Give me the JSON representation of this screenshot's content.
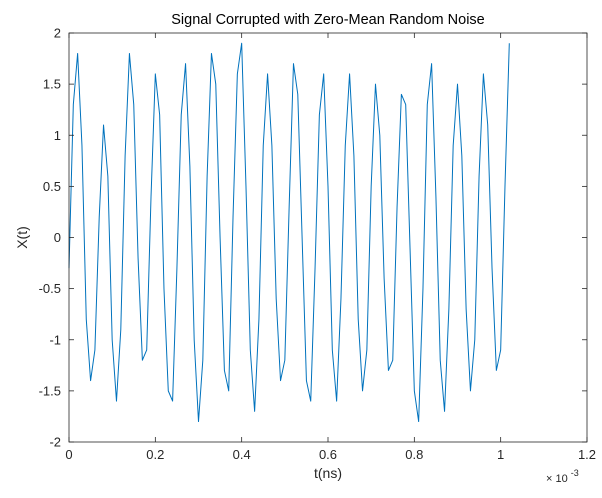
{
  "figure": {
    "background": "#ffffff",
    "axis_color": "#262626",
    "line_color": "#0072BD"
  },
  "chart_data": {
    "type": "line",
    "title": "Signal Corrupted with Zero-Mean Random Noise",
    "xlabel": "t(ns)",
    "ylabel": "X(t)",
    "x_exponent": "× 10",
    "x_exponent_power": "-3",
    "xlim": [
      0,
      0.0012
    ],
    "ylim": [
      -2,
      2
    ],
    "xticks": [
      0,
      0.0002,
      0.0004,
      0.0006,
      0.0008,
      0.001,
      0.0012
    ],
    "xtick_labels": [
      "0",
      "0.2",
      "0.4",
      "0.6",
      "0.8",
      "1",
      "1.2"
    ],
    "yticks": [
      -2,
      -1.5,
      -1,
      -0.5,
      0,
      0.5,
      1,
      1.5,
      2
    ],
    "ytick_labels": [
      "-2",
      "-1.5",
      "-1",
      "-0.5",
      "0",
      "0.5",
      "1",
      "1.5",
      "2"
    ],
    "grid": false,
    "series": [
      {
        "color": "#0072BD",
        "x": [
          0.0,
          1e-05,
          2e-05,
          3e-05,
          4e-05,
          5e-05,
          6e-05,
          7e-05,
          8e-05,
          9e-05,
          0.0001,
          0.00011,
          0.00012,
          0.00013,
          0.00014,
          0.00015,
          0.00016,
          0.00017,
          0.00018,
          0.00019,
          0.0002,
          0.00021,
          0.00022,
          0.00023,
          0.00024,
          0.00025,
          0.00026,
          0.00027,
          0.00028,
          0.00029,
          0.0003,
          0.00031,
          0.00032,
          0.00033,
          0.00034,
          0.00035,
          0.00036,
          0.00037,
          0.00038,
          0.00039,
          0.0004,
          0.00041,
          0.00042,
          0.00043,
          0.00044,
          0.00045,
          0.00046,
          0.00047,
          0.00048,
          0.00049,
          0.0005,
          0.00051,
          0.00052,
          0.00053,
          0.00054,
          0.00055,
          0.00056,
          0.00057,
          0.00058,
          0.00059,
          0.0006,
          0.00061,
          0.00062,
          0.00063,
          0.00064,
          0.00065,
          0.00066,
          0.00067,
          0.00068,
          0.00069,
          0.0007,
          0.00071,
          0.00072,
          0.00073,
          0.00074,
          0.00075,
          0.00076,
          0.00077,
          0.00078,
          0.00079,
          0.0008,
          0.00081,
          0.00082,
          0.00083,
          0.00084,
          0.00085,
          0.00086,
          0.00087,
          0.00088,
          0.00089,
          0.0009,
          0.00091,
          0.00092,
          0.00093,
          0.00094,
          0.00095,
          0.00096,
          0.00097,
          0.00098,
          0.00099,
          0.001,
          0.00101,
          0.00102
        ],
        "y": [
          -0.3,
          1.3,
          1.8,
          0.9,
          -0.8,
          -1.4,
          -1.1,
          0.2,
          1.1,
          0.6,
          -1.0,
          -1.6,
          -0.9,
          0.8,
          1.8,
          1.3,
          -0.2,
          -1.2,
          -1.1,
          0.4,
          1.6,
          1.2,
          -0.5,
          -1.5,
          -1.6,
          -0.3,
          1.2,
          1.7,
          0.7,
          -1.0,
          -1.8,
          -1.2,
          0.6,
          1.8,
          1.5,
          0.0,
          -1.3,
          -1.5,
          0.2,
          1.6,
          1.9,
          0.5,
          -1.1,
          -1.7,
          -0.8,
          0.9,
          1.6,
          0.9,
          -0.6,
          -1.4,
          -1.2,
          0.3,
          1.7,
          1.4,
          0.0,
          -1.4,
          -1.6,
          -0.3,
          1.2,
          1.6,
          0.5,
          -1.1,
          -1.6,
          -0.6,
          0.9,
          1.6,
          0.8,
          -0.8,
          -1.5,
          -1.1,
          0.5,
          1.5,
          1.0,
          -0.4,
          -1.3,
          -1.2,
          0.3,
          1.4,
          1.3,
          -0.1,
          -1.5,
          -1.8,
          -0.5,
          1.3,
          1.7,
          0.4,
          -1.2,
          -1.7,
          -0.7,
          0.9,
          1.5,
          0.8,
          -0.7,
          -1.5,
          -1.0,
          0.6,
          1.6,
          1.1,
          -0.3,
          -1.3,
          -1.1,
          0.5,
          1.9
        ]
      }
    ]
  }
}
